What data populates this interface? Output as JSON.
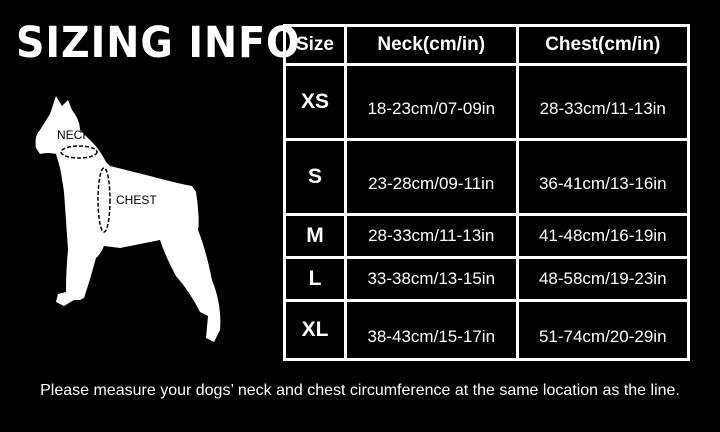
{
  "title": "SIZING INFO",
  "diagram": {
    "neck_label": "NECK",
    "chest_label": "CHEST"
  },
  "table": {
    "headers": [
      "Size",
      "Neck(cm/in)",
      "Chest(cm/in)"
    ],
    "rows": [
      {
        "size": "XS",
        "neck": "18-23cm/07-09in",
        "chest": "28-33cm/11-13in"
      },
      {
        "size": "S",
        "neck": "23-28cm/09-11in",
        "chest": "36-41cm/13-16in"
      },
      {
        "size": "M",
        "neck": "28-33cm/11-13in",
        "chest": "41-48cm/16-19in"
      },
      {
        "size": "L",
        "neck": "33-38cm/13-15in",
        "chest": "48-58cm/19-23in"
      },
      {
        "size": "XL",
        "neck": "38-43cm/15-17in",
        "chest": "51-74cm/20-29in"
      }
    ]
  },
  "note": "Please measure your dogs’  neck and chest circumference at the same location as the line."
}
